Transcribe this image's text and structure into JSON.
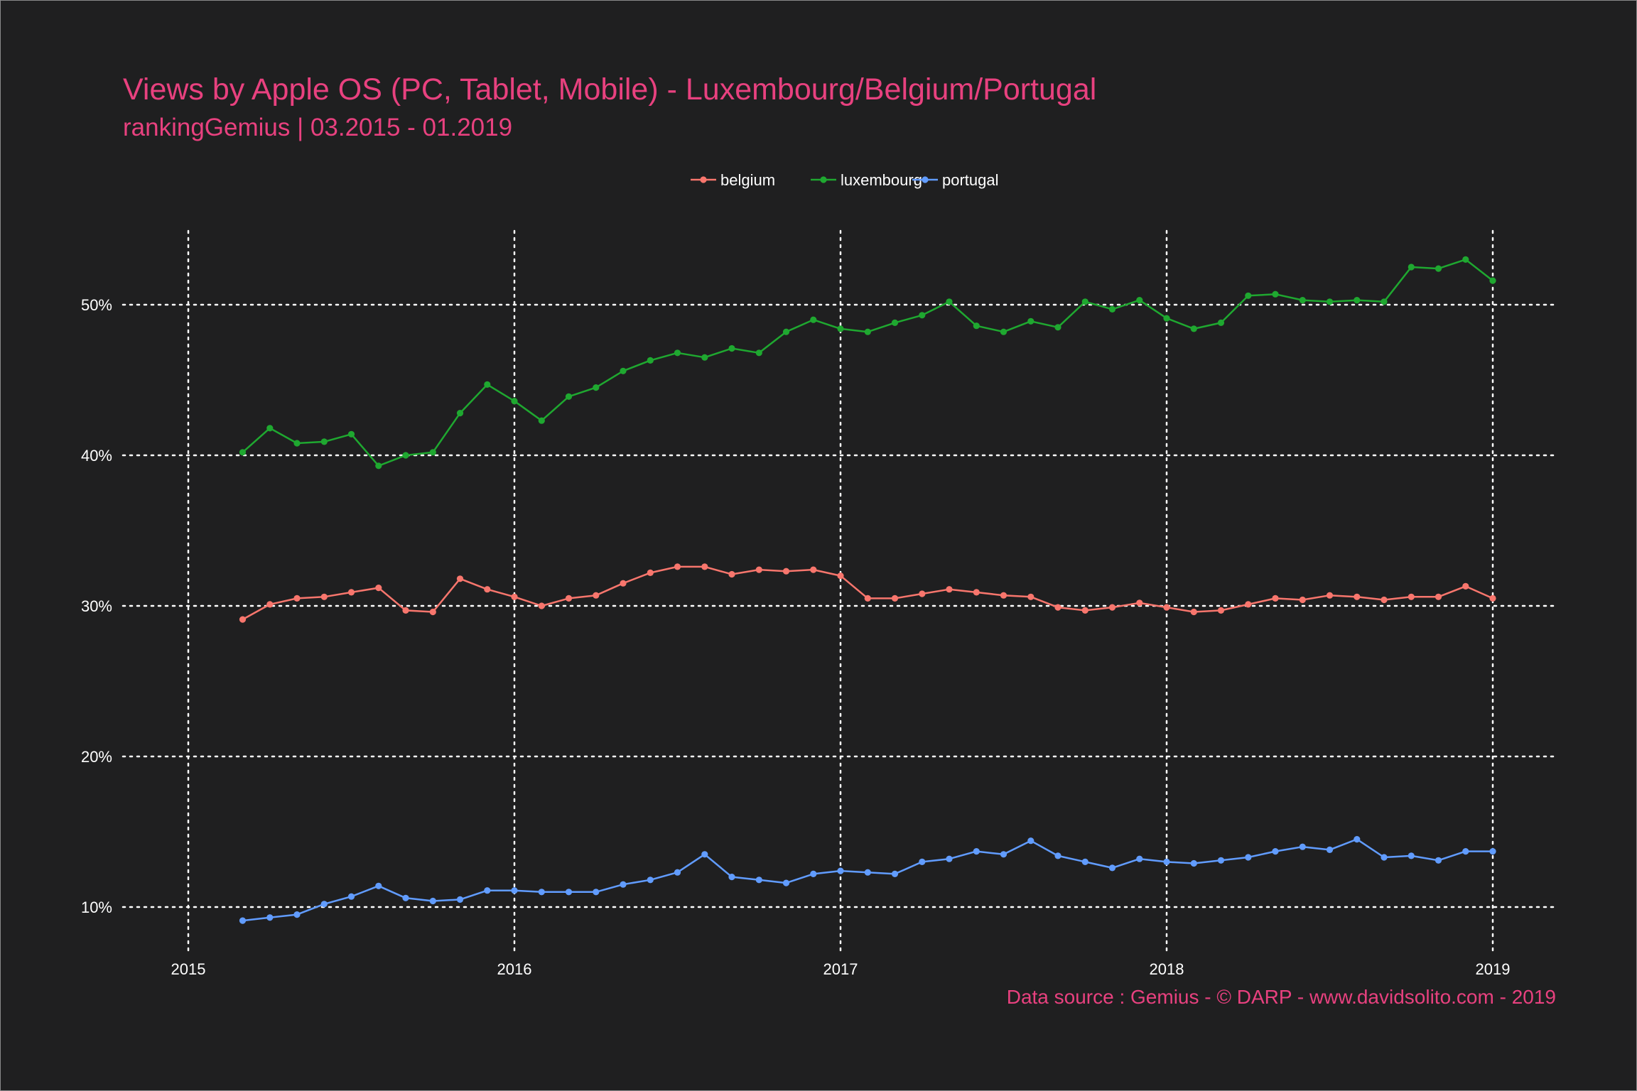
{
  "chart_data": {
    "type": "line",
    "title": "Views by Apple OS (PC, Tablet, Mobile) - Luxembourg/Belgium/Portugal",
    "subtitle": "rankingGemius | 03.2015 - 01.2019",
    "caption": "Data source : Gemius - © DARP - www.davidsolito.com - 2019",
    "xlabel": "",
    "ylabel": "",
    "x_ticks": [
      "2015",
      "2016",
      "2017",
      "2018",
      "2019"
    ],
    "y_ticks": [
      "10%",
      "20%",
      "30%",
      "40%",
      "50%"
    ],
    "x_range": [
      "2014-10",
      "2019-04"
    ],
    "ylim": [
      7.5,
      55
    ],
    "grid": true,
    "grid_style": "dotted white",
    "legend_position": "top",
    "background": "#1f1f20",
    "x": [
      "2015-03",
      "2015-04",
      "2015-05",
      "2015-06",
      "2015-07",
      "2015-08",
      "2015-09",
      "2015-10",
      "2015-11",
      "2015-12",
      "2016-01",
      "2016-02",
      "2016-03",
      "2016-04",
      "2016-05",
      "2016-06",
      "2016-07",
      "2016-08",
      "2016-09",
      "2016-10",
      "2016-11",
      "2016-12",
      "2017-01",
      "2017-02",
      "2017-03",
      "2017-04",
      "2017-05",
      "2017-06",
      "2017-07",
      "2017-08",
      "2017-09",
      "2017-10",
      "2017-11",
      "2017-12",
      "2018-01",
      "2018-02",
      "2018-03",
      "2018-04",
      "2018-05",
      "2018-06",
      "2018-07",
      "2018-08",
      "2018-09",
      "2018-10",
      "2018-11",
      "2018-12",
      "2019-01"
    ],
    "series": [
      {
        "name": "belgium",
        "color": "#f8766d",
        "values": [
          29.1,
          30.1,
          30.5,
          30.6,
          30.9,
          31.2,
          29.7,
          29.6,
          31.8,
          31.1,
          30.6,
          30.0,
          30.5,
          30.7,
          31.5,
          32.2,
          32.6,
          32.6,
          32.1,
          32.4,
          32.3,
          32.4,
          32.0,
          30.5,
          30.5,
          30.8,
          31.1,
          30.9,
          30.7,
          30.6,
          29.9,
          29.7,
          29.9,
          30.2,
          29.9,
          29.6,
          29.7,
          30.1,
          30.5,
          30.4,
          30.7,
          30.6,
          30.4,
          30.6,
          30.6,
          31.3,
          30.5
        ]
      },
      {
        "name": "luxembourg",
        "color": "#1fa830",
        "values": [
          40.2,
          41.8,
          40.8,
          40.9,
          41.4,
          39.3,
          40.0,
          40.2,
          42.8,
          44.7,
          43.6,
          42.3,
          43.9,
          44.5,
          45.6,
          46.3,
          46.8,
          46.5,
          47.1,
          46.8,
          48.2,
          49.0,
          48.4,
          48.2,
          48.8,
          49.3,
          50.2,
          48.6,
          48.2,
          48.9,
          48.5,
          50.2,
          49.7,
          50.3,
          49.1,
          48.4,
          48.8,
          50.6,
          50.7,
          50.3,
          50.2,
          50.3,
          50.2,
          52.5,
          52.4,
          53.0,
          51.6
        ]
      },
      {
        "name": "portugal",
        "color": "#619cff",
        "values": [
          9.1,
          9.3,
          9.5,
          10.2,
          10.7,
          11.4,
          10.6,
          10.4,
          10.5,
          11.1,
          11.1,
          11.0,
          11.0,
          11.0,
          11.5,
          11.8,
          12.3,
          13.5,
          12.0,
          11.8,
          11.6,
          12.2,
          12.4,
          12.3,
          12.2,
          13.0,
          13.2,
          13.7,
          13.5,
          14.4,
          13.4,
          13.0,
          12.6,
          13.2,
          13.0,
          12.9,
          13.1,
          13.3,
          13.7,
          14.0,
          13.8,
          14.5,
          13.3,
          13.4,
          13.1,
          13.7,
          13.7
        ]
      }
    ]
  }
}
